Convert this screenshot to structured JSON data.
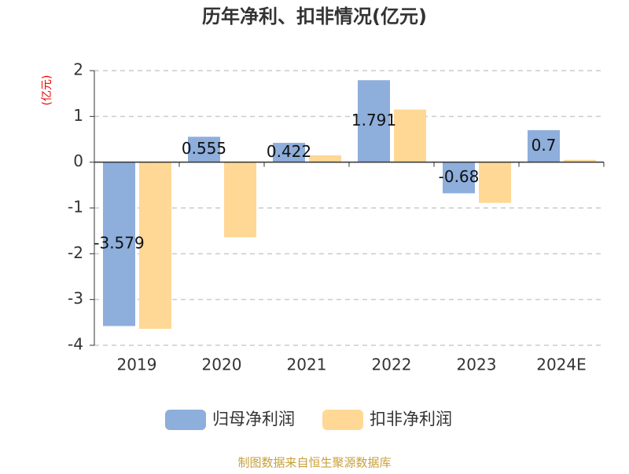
{
  "chart_data": {
    "type": "bar",
    "title": "历年净利、扣非情况(亿元)",
    "y_axis_label": "(亿元)",
    "categories": [
      "2019",
      "2020",
      "2021",
      "2022",
      "2023",
      "2024E"
    ],
    "series": [
      {
        "name": "归母净利润",
        "color": "#8eaedb",
        "values": [
          -3.579,
          0.555,
          0.422,
          1.791,
          -0.68,
          0.7
        ]
      },
      {
        "name": "扣非净利润",
        "color": "#ffd896",
        "values": [
          -3.64,
          -1.64,
          0.15,
          1.15,
          -0.89,
          0.05
        ]
      }
    ],
    "ylim": [
      -4,
      2
    ],
    "yticks": [
      -4,
      -3,
      -2,
      -1,
      0,
      1,
      2
    ],
    "grid": true,
    "source": "制图数据来自恒生聚源数据库"
  }
}
